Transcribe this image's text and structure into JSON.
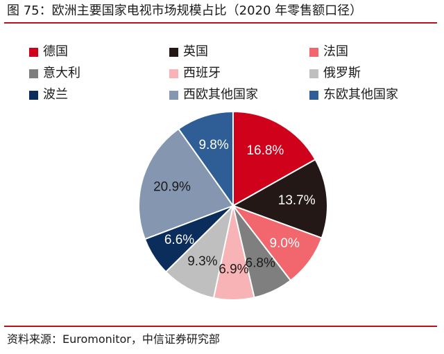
{
  "title": "图 75：欧洲主要国家电视市场规模占比（2020 年零售额口径）",
  "source": "资料来源：Euromonitor，中信证券研究部",
  "chart_data": {
    "type": "pie",
    "legend_position": "top",
    "slices": [
      {
        "label": "德国",
        "value": 16.8,
        "display": "16.8%",
        "color": "#d0021b",
        "label_color": "#ffffff"
      },
      {
        "label": "英国",
        "value": 13.7,
        "display": "13.7%",
        "color": "#231815",
        "label_color": "#ffffff"
      },
      {
        "label": "法国",
        "value": 9.0,
        "display": "9.0%",
        "color": "#f2666e",
        "label_color": "#ffffff"
      },
      {
        "label": "意大利",
        "value": 6.8,
        "display": "6.8%",
        "color": "#7f7f7f",
        "label_color": "#1a1a1a"
      },
      {
        "label": "西班牙",
        "value": 6.9,
        "display": "6.9%",
        "color": "#f7b3b5",
        "label_color": "#1a1a1a"
      },
      {
        "label": "俄罗斯",
        "value": 9.3,
        "display": "9.3%",
        "color": "#bfbfbf",
        "label_color": "#1a1a1a"
      },
      {
        "label": "波兰",
        "value": 6.6,
        "display": "6.6%",
        "color": "#0b2d5b",
        "label_color": "#ffffff"
      },
      {
        "label": "西欧其他国家",
        "value": 20.9,
        "display": "20.9%",
        "color": "#8496b0",
        "label_color": "#1a1a1a"
      },
      {
        "label": "东欧其他国家",
        "value": 9.8,
        "display": "9.8%",
        "color": "#2e5e95",
        "label_color": "#ffffff"
      }
    ]
  }
}
